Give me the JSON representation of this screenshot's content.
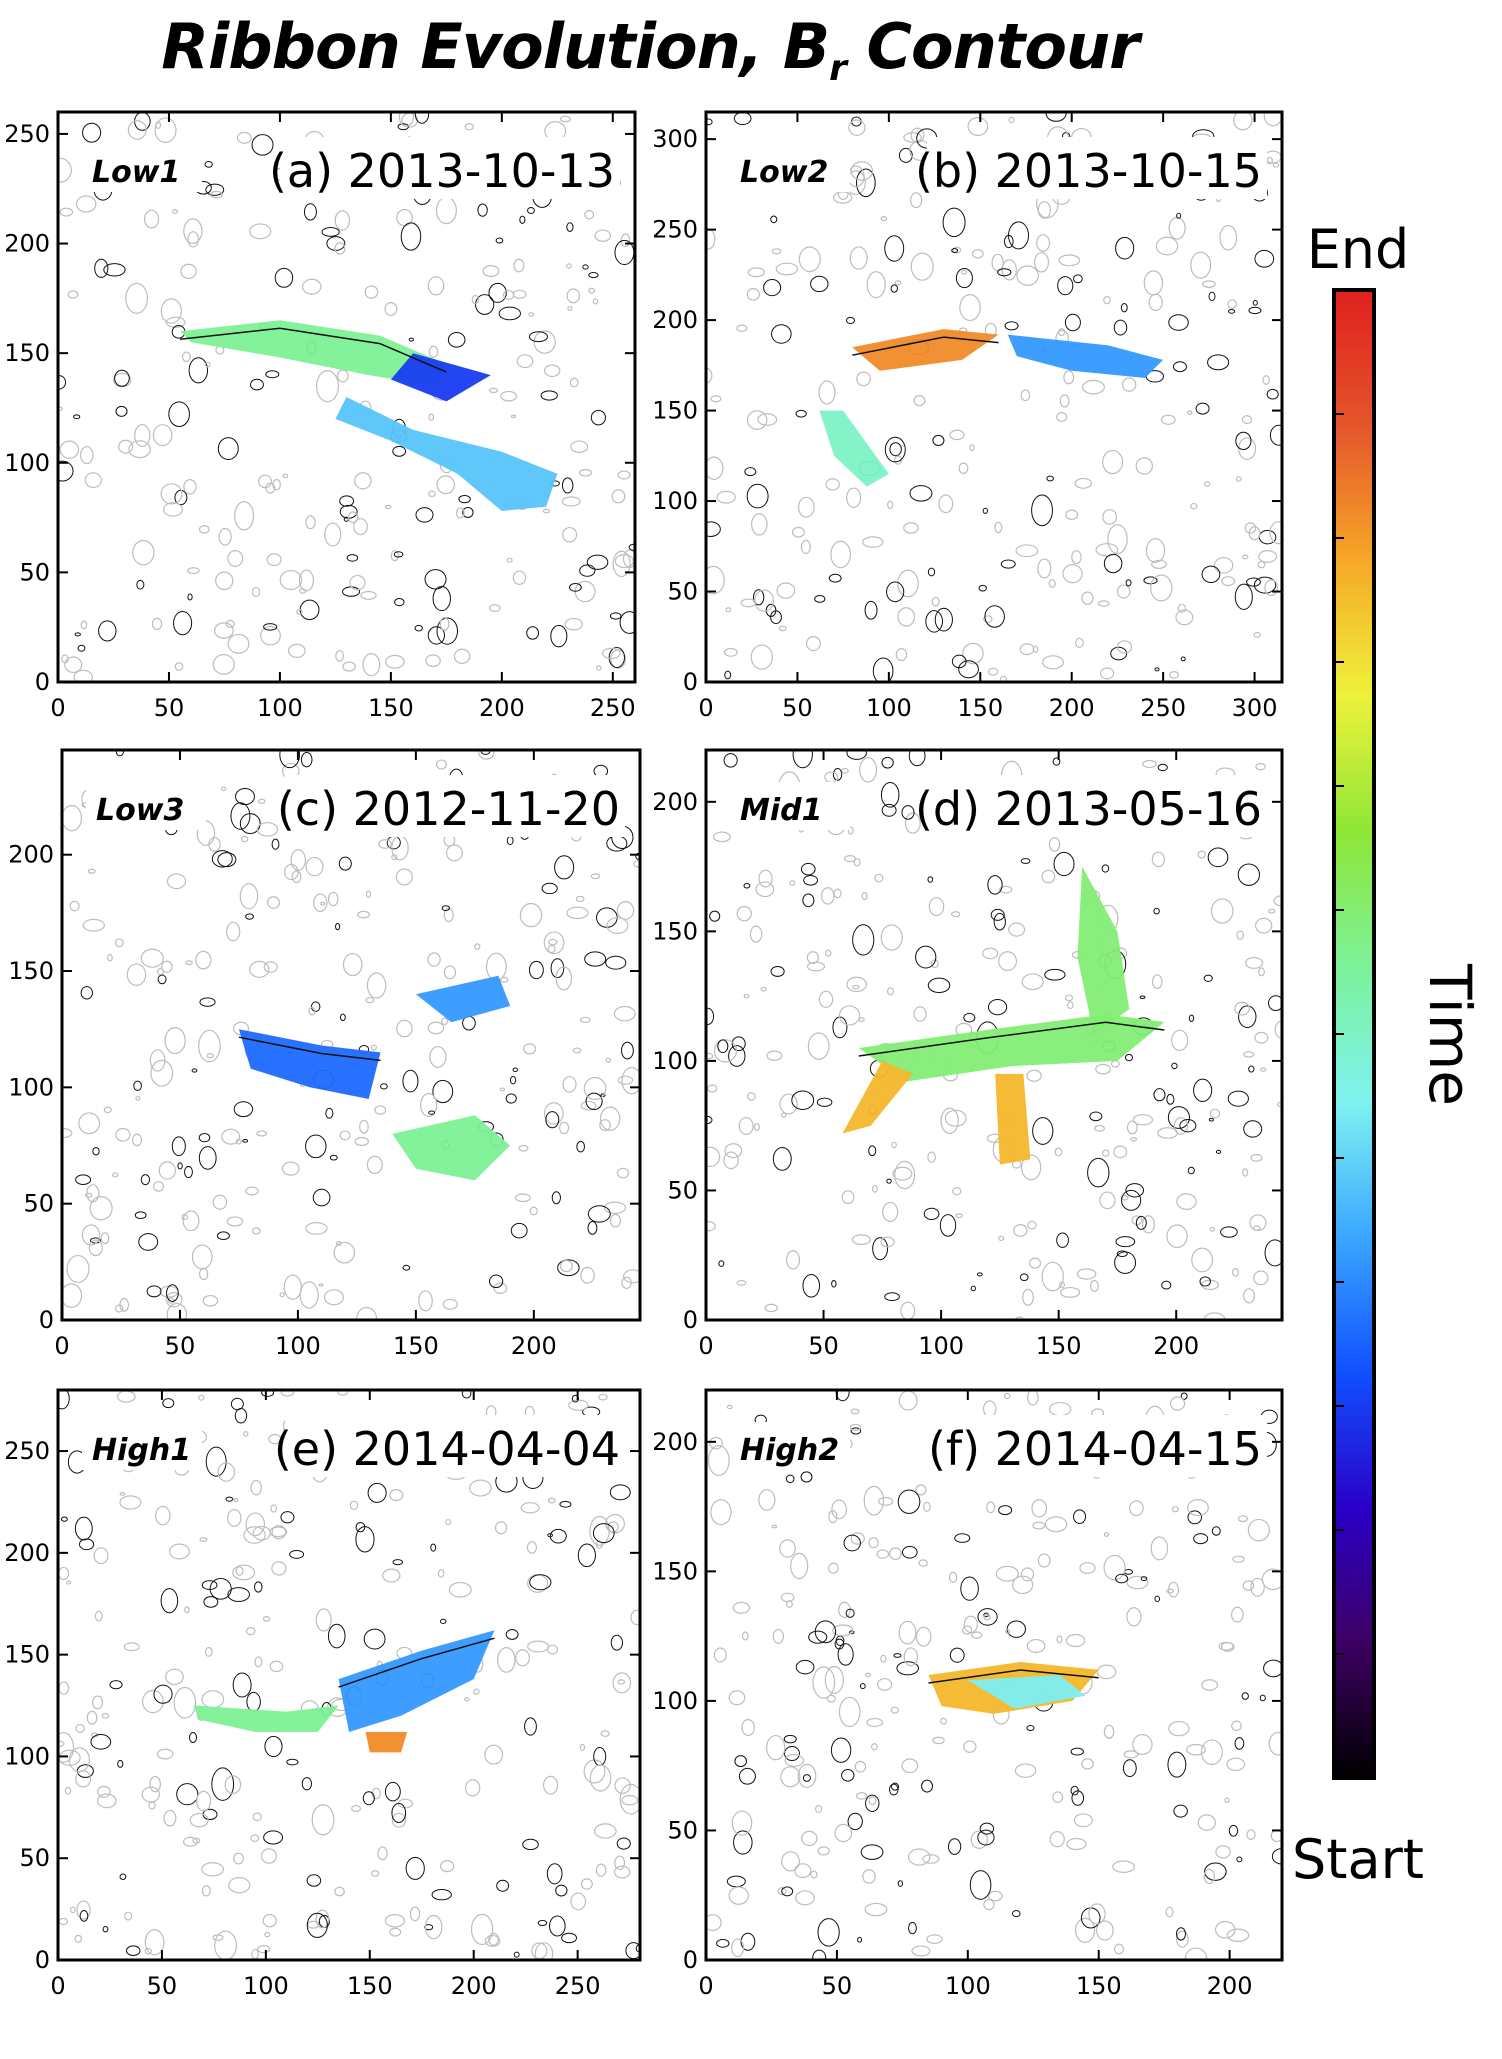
{
  "title": {
    "main": "Ribbon Evolution, B",
    "subscript": "r",
    "suffix": " Contour"
  },
  "colorbar": {
    "top_label": "End",
    "bottom_label": "Start",
    "axis_label": "Time",
    "colors": [
      "#000000",
      "#3d0063",
      "#2a00c8",
      "#1050ff",
      "#3aa6ff",
      "#7ff2f0",
      "#7cf29a",
      "#8fe636",
      "#eef23a",
      "#f6a828",
      "#e4552a",
      "#e0201e"
    ]
  },
  "colors": {
    "contour_gray": "#bdbdbd",
    "contour_black": "#111111"
  },
  "chart_data": [
    {
      "type": "heatmap",
      "id": "a",
      "region": "Low1",
      "label": "(a) 2013-10-13",
      "xlim": [
        0,
        260
      ],
      "ylim": [
        0,
        260
      ],
      "xticks": [
        0,
        50,
        100,
        150,
        200,
        250
      ],
      "yticks": [
        0,
        50,
        100,
        150,
        200,
        250
      ],
      "ribbons": [
        {
          "time": 0.55,
          "points": [
            [
              55,
              160
            ],
            [
              100,
              165
            ],
            [
              145,
              158
            ],
            [
              175,
              145
            ],
            [
              170,
              135
            ],
            [
              140,
              140
            ],
            [
              100,
              148
            ],
            [
              60,
              155
            ]
          ]
        },
        {
          "time": 0.4,
          "points": [
            [
              130,
              130
            ],
            [
              160,
              115
            ],
            [
              200,
              105
            ],
            [
              225,
              95
            ],
            [
              220,
              80
            ],
            [
              200,
              78
            ],
            [
              180,
              95
            ],
            [
              150,
              110
            ],
            [
              125,
              120
            ]
          ]
        },
        {
          "time": 0.25,
          "points": [
            [
              160,
              150
            ],
            [
              195,
              140
            ],
            [
              175,
              128
            ],
            [
              150,
              138
            ]
          ]
        }
      ]
    },
    {
      "type": "heatmap",
      "id": "b",
      "region": "Low2",
      "label": "(b) 2013-10-15",
      "xlim": [
        0,
        315
      ],
      "ylim": [
        0,
        315
      ],
      "xticks": [
        0,
        50,
        100,
        150,
        200,
        250,
        300
      ],
      "yticks": [
        0,
        50,
        100,
        150,
        200,
        250,
        300
      ],
      "ribbons": [
        {
          "time": 0.85,
          "points": [
            [
              80,
              185
            ],
            [
              130,
              195
            ],
            [
              160,
              192
            ],
            [
              140,
              178
            ],
            [
              95,
              172
            ]
          ]
        },
        {
          "time": 0.35,
          "points": [
            [
              165,
              192
            ],
            [
              220,
              186
            ],
            [
              250,
              178
            ],
            [
              240,
              168
            ],
            [
              200,
              172
            ],
            [
              170,
              180
            ]
          ]
        },
        {
          "time": 0.5,
          "points": [
            [
              62,
              150
            ],
            [
              75,
              150
            ],
            [
              100,
              115
            ],
            [
              88,
              108
            ],
            [
              70,
              125
            ]
          ]
        }
      ]
    },
    {
      "type": "heatmap",
      "id": "c",
      "region": "Low3",
      "label": "(c) 2012-11-20",
      "xlim": [
        0,
        245
      ],
      "ylim": [
        0,
        245
      ],
      "xticks": [
        0,
        50,
        100,
        150,
        200
      ],
      "yticks": [
        0,
        50,
        100,
        150,
        200
      ],
      "ribbons": [
        {
          "time": 0.3,
          "points": [
            [
              75,
              125
            ],
            [
              110,
              118
            ],
            [
              135,
              115
            ],
            [
              130,
              95
            ],
            [
              105,
              100
            ],
            [
              80,
              108
            ]
          ]
        },
        {
          "time": 0.35,
          "points": [
            [
              150,
              140
            ],
            [
              185,
              148
            ],
            [
              190,
              135
            ],
            [
              165,
              128
            ]
          ]
        },
        {
          "time": 0.55,
          "points": [
            [
              140,
              80
            ],
            [
              175,
              88
            ],
            [
              190,
              75
            ],
            [
              175,
              60
            ],
            [
              150,
              65
            ]
          ]
        }
      ]
    },
    {
      "type": "heatmap",
      "id": "d",
      "region": "Mid1",
      "label": "(d) 2013-05-16",
      "xlim": [
        0,
        245
      ],
      "ylim": [
        0,
        220
      ],
      "xticks": [
        0,
        50,
        100,
        150,
        200
      ],
      "yticks": [
        0,
        50,
        100,
        150,
        200
      ],
      "ribbons": [
        {
          "time": 0.58,
          "points": [
            [
              65,
              105
            ],
            [
              120,
              112
            ],
            [
              170,
              118
            ],
            [
              195,
              115
            ],
            [
              175,
              100
            ],
            [
              130,
              98
            ],
            [
              85,
              92
            ]
          ]
        },
        {
          "time": 0.58,
          "points": [
            [
              160,
              175
            ],
            [
              175,
              150
            ],
            [
              180,
              120
            ],
            [
              165,
              110
            ],
            [
              158,
              140
            ]
          ]
        },
        {
          "time": 0.8,
          "points": [
            [
              58,
              72
            ],
            [
              75,
              100
            ],
            [
              88,
              95
            ],
            [
              70,
              75
            ]
          ]
        },
        {
          "time": 0.8,
          "points": [
            [
              123,
              95
            ],
            [
              135,
              95
            ],
            [
              138,
              62
            ],
            [
              125,
              60
            ]
          ]
        }
      ]
    },
    {
      "type": "heatmap",
      "id": "e",
      "region": "High1",
      "label": "(e) 2014-04-04",
      "xlim": [
        0,
        280
      ],
      "ylim": [
        0,
        280
      ],
      "xticks": [
        0,
        50,
        100,
        150,
        200,
        250
      ],
      "yticks": [
        0,
        50,
        100,
        150,
        200,
        250
      ],
      "ribbons": [
        {
          "time": 0.35,
          "points": [
            [
              135,
              138
            ],
            [
              175,
              152
            ],
            [
              210,
              162
            ],
            [
              200,
              138
            ],
            [
              165,
              120
            ],
            [
              140,
              112
            ]
          ]
        },
        {
          "time": 0.55,
          "points": [
            [
              65,
              125
            ],
            [
              110,
              122
            ],
            [
              135,
              125
            ],
            [
              125,
              112
            ],
            [
              95,
              112
            ],
            [
              68,
              118
            ]
          ]
        },
        {
          "time": 0.85,
          "points": [
            [
              148,
              112
            ],
            [
              168,
              112
            ],
            [
              165,
              102
            ],
            [
              150,
              102
            ]
          ]
        }
      ]
    },
    {
      "type": "heatmap",
      "id": "f",
      "region": "High2",
      "label": "(f) 2014-04-15",
      "xlim": [
        0,
        220
      ],
      "ylim": [
        0,
        220
      ],
      "xticks": [
        0,
        50,
        100,
        150,
        200
      ],
      "yticks": [
        0,
        50,
        100,
        150,
        200
      ],
      "ribbons": [
        {
          "time": 0.8,
          "points": [
            [
              85,
              110
            ],
            [
              120,
              115
            ],
            [
              150,
              112
            ],
            [
              140,
              100
            ],
            [
              110,
              95
            ],
            [
              90,
              98
            ]
          ]
        },
        {
          "time": 0.45,
          "points": [
            [
              100,
              108
            ],
            [
              135,
              110
            ],
            [
              145,
              102
            ],
            [
              118,
              97
            ]
          ]
        }
      ]
    }
  ]
}
